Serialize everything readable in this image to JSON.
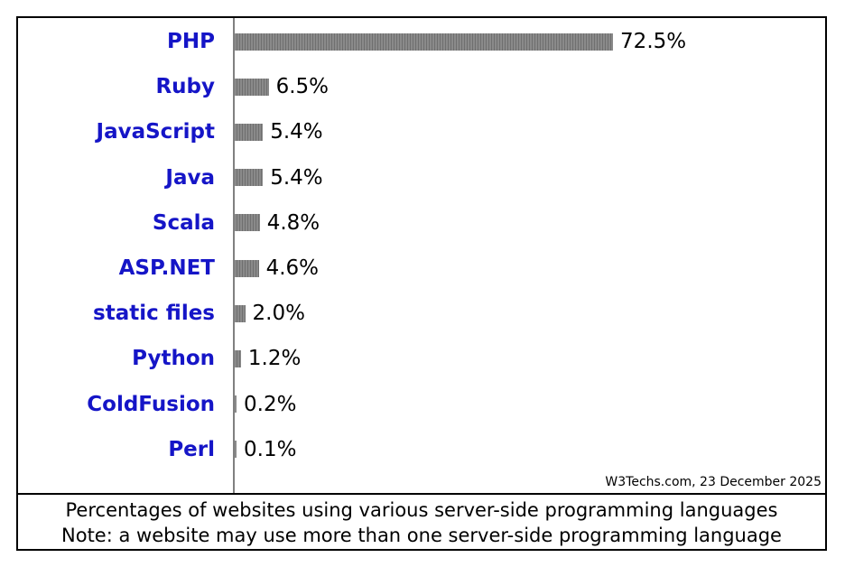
{
  "chart_data": {
    "type": "bar",
    "orientation": "horizontal",
    "categories": [
      "PHP",
      "Ruby",
      "JavaScript",
      "Java",
      "Scala",
      "ASP.NET",
      "static files",
      "Python",
      "ColdFusion",
      "Perl"
    ],
    "values": [
      72.5,
      6.5,
      5.4,
      5.4,
      4.8,
      4.6,
      2.0,
      1.2,
      0.2,
      0.1
    ],
    "value_labels": [
      "72.5%",
      "6.5%",
      "5.4%",
      "5.4%",
      "4.8%",
      "4.6%",
      "2.0%",
      "1.2%",
      "0.2%",
      "0.1%"
    ],
    "title": "",
    "xlabel": "",
    "ylabel": "",
    "xlim": [
      0,
      100
    ],
    "grid": false,
    "colors": {
      "bar": "#808080",
      "category_label": "#1515c7",
      "axis": "#808080"
    }
  },
  "source_note": "W3Techs.com, 23 December 2025",
  "caption": {
    "line1": "Percentages of websites using various server-side programming languages",
    "line2": "Note: a website may use more than one server-side programming language"
  }
}
